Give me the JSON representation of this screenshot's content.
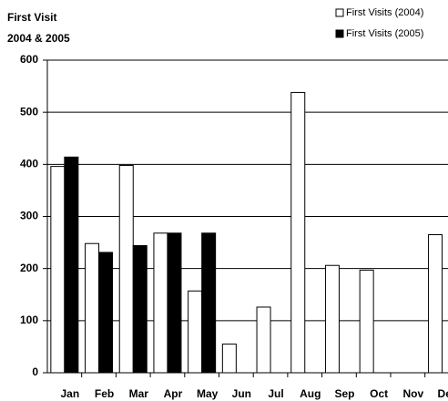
{
  "chart_data": {
    "type": "bar",
    "title": "First Visit",
    "subtitle": "2004 & 2005",
    "categories": [
      "Jan",
      "Feb",
      "Mar",
      "Apr",
      "May",
      "Jun",
      "Jul",
      "Aug",
      "Sep",
      "Oct",
      "Nov",
      "Dec"
    ],
    "series": [
      {
        "name": "First Visits (2004)",
        "color": "#ffffff",
        "values": [
          396,
          248,
          398,
          268,
          157,
          55,
          126,
          538,
          206,
          197,
          null,
          265
        ]
      },
      {
        "name": "First Visits (2005)",
        "color": "#000000",
        "values": [
          414,
          231,
          244,
          268,
          268,
          null,
          null,
          null,
          null,
          null,
          null,
          null
        ]
      }
    ],
    "ylim": [
      0,
      600
    ],
    "yticks": [
      0,
      100,
      200,
      300,
      400,
      500,
      600
    ],
    "grid": true,
    "legend": "top-right"
  }
}
